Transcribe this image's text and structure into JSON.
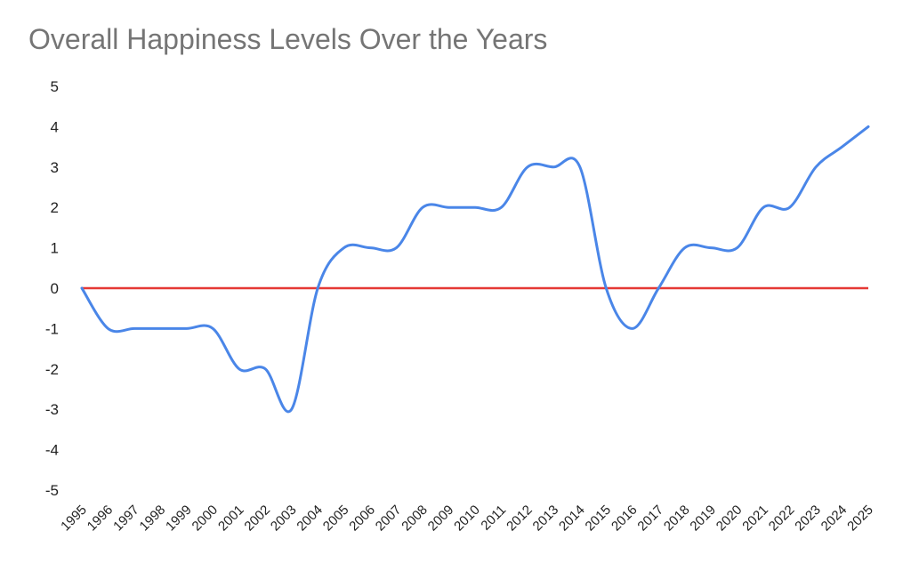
{
  "chart_data": {
    "type": "line",
    "title": "Overall Happiness Levels Over the Years",
    "xlabel": "",
    "ylabel": "",
    "ylim": [
      -5,
      5
    ],
    "yticks": [
      "5",
      "4",
      "3",
      "2",
      "1",
      "0",
      "-1",
      "-2",
      "-3",
      "-4",
      "-5"
    ],
    "grid": false,
    "legend": "none",
    "categories": [
      "1995",
      "1996",
      "1997",
      "1998",
      "1999",
      "2000",
      "2001",
      "2002",
      "2003",
      "2004",
      "2005",
      "2006",
      "2007",
      "2008",
      "2009",
      "2010",
      "2011",
      "2012",
      "2013",
      "2014",
      "2015",
      "2016",
      "2017",
      "2018",
      "2019",
      "2020",
      "2021",
      "2022",
      "2023",
      "2024",
      "2025"
    ],
    "series": [
      {
        "color": "#4a86e8",
        "smooth": true,
        "values": [
          0,
          -1,
          -1,
          -1,
          -1,
          -1,
          -2,
          -2,
          -3,
          0,
          1,
          1,
          1,
          2,
          2,
          2,
          2,
          3,
          3,
          3,
          0,
          -1,
          0,
          1,
          1,
          1,
          2,
          2,
          3,
          3.5,
          4
        ]
      }
    ],
    "reference_line": {
      "value": 0,
      "color": "#e53935"
    }
  }
}
